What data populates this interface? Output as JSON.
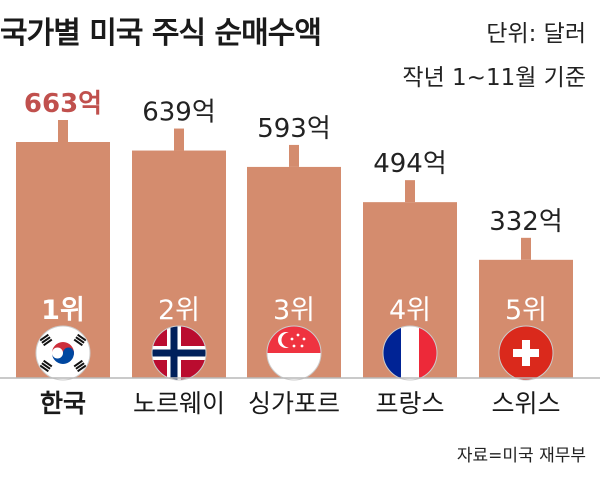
{
  "title": "국가별 미국 주식 순매수액",
  "unit_text": "단위: 달러",
  "period_text": "작년 1~11월 기준",
  "source_text": "자료=미국 재무부",
  "colors": {
    "bar": "#d48c6e",
    "highlight_value": "#c0504d",
    "text": "#222222",
    "rank": "#ffffff"
  },
  "chart_data": {
    "type": "bar",
    "title": "국가별 미국 주식 순매수액",
    "categories": [
      "한국",
      "노르웨이",
      "싱가포르",
      "프랑스",
      "스위스"
    ],
    "values": [
      663,
      639,
      593,
      494,
      332
    ],
    "value_labels": [
      "663억",
      "639억",
      "593억",
      "494억",
      "332억"
    ],
    "ranks": [
      "1위",
      "2위",
      "3위",
      "4위",
      "5위"
    ],
    "flag_icons": [
      "south-korea-flag-icon",
      "norway-flag-icon",
      "singapore-flag-icon",
      "france-flag-icon",
      "switzerland-flag-icon"
    ],
    "highlight_index": 0,
    "ylim": [
      0,
      663
    ],
    "grid": false,
    "legend": "none"
  }
}
